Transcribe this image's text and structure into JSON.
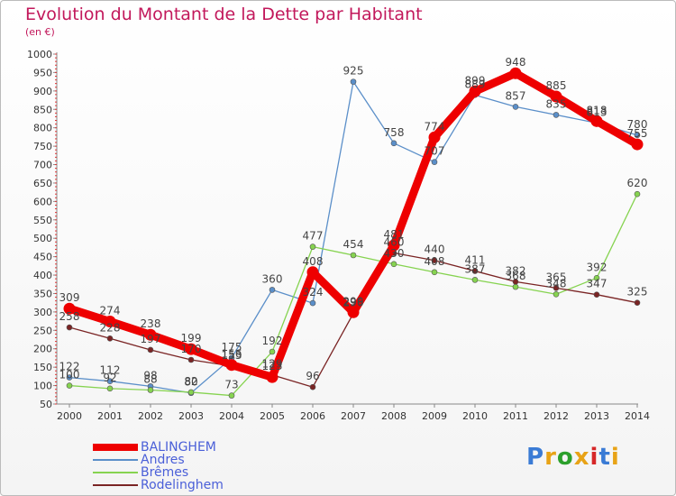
{
  "header": {
    "title": "Evolution du Montant de la Dette par Habitant",
    "subtitle": "(en €)"
  },
  "logo": {
    "text": "Proxiti",
    "colors": [
      "#3a7bd5",
      "#e8a317",
      "#2ca02c",
      "#e8a317",
      "#d62728",
      "#3a7bd5",
      "#e8a317"
    ]
  },
  "chart_data": {
    "type": "line",
    "title": "Evolution du Montant de la Dette par Habitant",
    "ylabel": "(en €)",
    "xlabel": "",
    "x": [
      "2000",
      "2001",
      "2002",
      "2003",
      "2004",
      "2005",
      "2006",
      "2007",
      "2008",
      "2009",
      "2010",
      "2011",
      "2012",
      "2013",
      "2014"
    ],
    "y_ticks": [
      "50",
      "100",
      "150",
      "200",
      "250",
      "300",
      "350",
      "400",
      "450",
      "500",
      "550",
      "600",
      "650",
      "700",
      "750",
      "800",
      "850",
      "900",
      "950",
      "1000"
    ],
    "ylim": [
      50,
      1000
    ],
    "grid": false,
    "legend_position": "bottom-left",
    "series": [
      {
        "name": "BALINGHEM",
        "color": "#ee0000",
        "values": [
          309,
          274,
          238,
          199,
          156,
          123,
          408,
          299,
          481,
          774,
          899,
          948,
          885,
          818,
          755
        ]
      },
      {
        "name": "Andres",
        "color": "#5b8fc9",
        "values": [
          122,
          112,
          98,
          80,
          175,
          360,
          324,
          925,
          758,
          707,
          889,
          857,
          835,
          813,
          780
        ]
      },
      {
        "name": "Brêmes",
        "color": "#86d350",
        "values": [
          100,
          92,
          88,
          82,
          73,
          192,
          477,
          454,
          430,
          408,
          387,
          368,
          348,
          392,
          620
        ]
      },
      {
        "name": "Rodelinghem",
        "color": "#7a2424",
        "values": [
          258,
          228,
          197,
          170,
          153,
          129,
          96,
          296,
          460,
          440,
          411,
          382,
          365,
          347,
          325
        ]
      }
    ]
  }
}
